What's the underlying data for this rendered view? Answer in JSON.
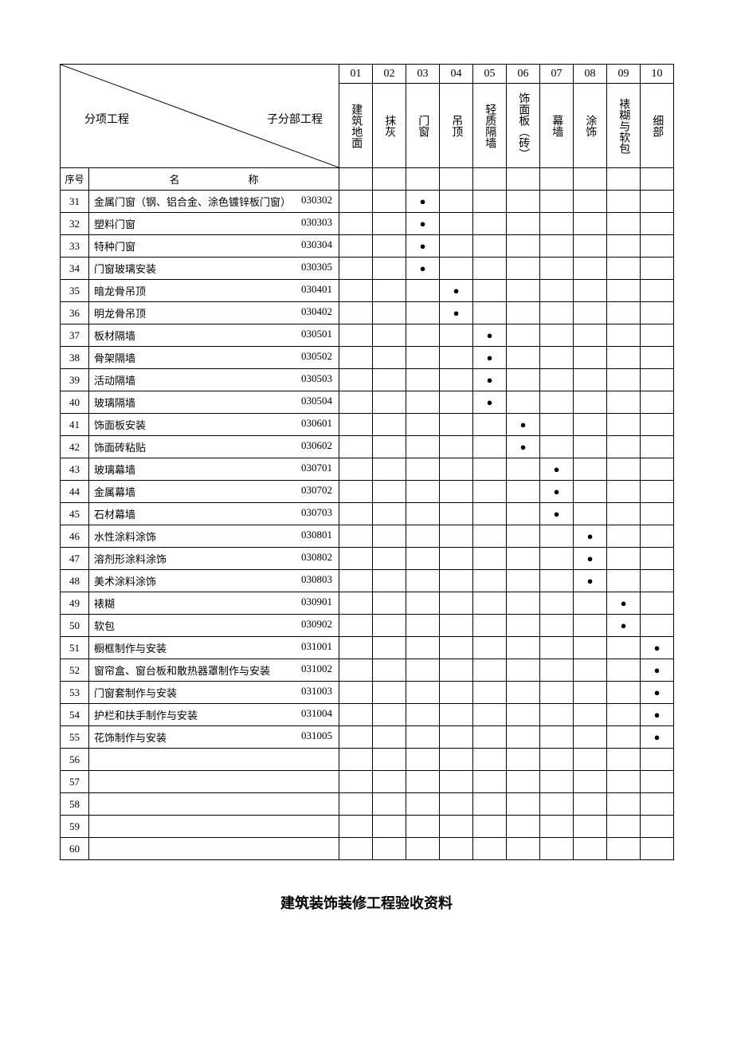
{
  "header": {
    "left_label": "分项工程",
    "right_label": "子分部工程"
  },
  "columns": [
    {
      "num": "01",
      "name": "建筑地面"
    },
    {
      "num": "02",
      "name": "抹灰"
    },
    {
      "num": "03",
      "name": "门窗"
    },
    {
      "num": "04",
      "name": "吊顶"
    },
    {
      "num": "05",
      "name": "轻质隔墙"
    },
    {
      "num": "06",
      "name": "饰面板︵砖︶"
    },
    {
      "num": "07",
      "name": "幕墙"
    },
    {
      "num": "08",
      "name": "涂饰"
    },
    {
      "num": "09",
      "name": "裱糊与软包"
    },
    {
      "num": "10",
      "name": "细部"
    }
  ],
  "subheader": {
    "seq": "序号",
    "name": "名　　称"
  },
  "rows": [
    {
      "seq": "31",
      "name": "金属门窗（钢、铝合金、涂色镀锌板门窗）",
      "code": "030302",
      "dot": 2
    },
    {
      "seq": "32",
      "name": "塑料门窗",
      "code": "030303",
      "dot": 2
    },
    {
      "seq": "33",
      "name": "特种门窗",
      "code": "030304",
      "dot": 2
    },
    {
      "seq": "34",
      "name": "门窗玻璃安装",
      "code": "030305",
      "dot": 2
    },
    {
      "seq": "35",
      "name": "暗龙骨吊顶",
      "code": "030401",
      "dot": 3
    },
    {
      "seq": "36",
      "name": "明龙骨吊顶",
      "code": "030402",
      "dot": 3
    },
    {
      "seq": "37",
      "name": "板材隔墙",
      "code": "030501",
      "dot": 4
    },
    {
      "seq": "38",
      "name": "骨架隔墙",
      "code": "030502",
      "dot": 4
    },
    {
      "seq": "39",
      "name": "活动隔墙",
      "code": "030503",
      "dot": 4
    },
    {
      "seq": "40",
      "name": "玻璃隔墙",
      "code": "030504",
      "dot": 4
    },
    {
      "seq": "41",
      "name": "饰面板安装",
      "code": "030601",
      "dot": 5
    },
    {
      "seq": "42",
      "name": "饰面砖粘贴",
      "code": "030602",
      "dot": 5
    },
    {
      "seq": "43",
      "name": "玻璃幕墙",
      "code": "030701",
      "dot": 6
    },
    {
      "seq": "44",
      "name": "金属幕墙",
      "code": "030702",
      "dot": 6
    },
    {
      "seq": "45",
      "name": "石材幕墙",
      "code": "030703",
      "dot": 6
    },
    {
      "seq": "46",
      "name": "水性涂料涂饰",
      "code": "030801",
      "dot": 7
    },
    {
      "seq": "47",
      "name": "溶剂形涂料涂饰",
      "code": "030802",
      "dot": 7
    },
    {
      "seq": "48",
      "name": "美术涂料涂饰",
      "code": "030803",
      "dot": 7
    },
    {
      "seq": "49",
      "name": "裱糊",
      "code": "030901",
      "dot": 8
    },
    {
      "seq": "50",
      "name": "软包",
      "code": "030902",
      "dot": 8
    },
    {
      "seq": "51",
      "name": "橱框制作与安装",
      "code": "031001",
      "dot": 9
    },
    {
      "seq": "52",
      "name": "窗帘盒、窗台板和散热器罩制作与安装",
      "code": "031002",
      "dot": 9
    },
    {
      "seq": "53",
      "name": "门窗套制作与安装",
      "code": "031003",
      "dot": 9
    },
    {
      "seq": "54",
      "name": "护栏和扶手制作与安装",
      "code": "031004",
      "dot": 9
    },
    {
      "seq": "55",
      "name": "花饰制作与安装",
      "code": "031005",
      "dot": 9
    },
    {
      "seq": "56",
      "name": "",
      "code": "",
      "dot": -1
    },
    {
      "seq": "57",
      "name": "",
      "code": "",
      "dot": -1
    },
    {
      "seq": "58",
      "name": "",
      "code": "",
      "dot": -1
    },
    {
      "seq": "59",
      "name": "",
      "code": "",
      "dot": -1
    },
    {
      "seq": "60",
      "name": "",
      "code": "",
      "dot": -1
    }
  ],
  "footer_title": "建筑装饰装修工程验收资料",
  "layout": {
    "seq_col_width": 36,
    "name_col_width": 314,
    "data_col_width": 42,
    "dot_char": "●",
    "border_color": "#000000",
    "background_color": "#ffffff",
    "text_color": "#000000"
  }
}
